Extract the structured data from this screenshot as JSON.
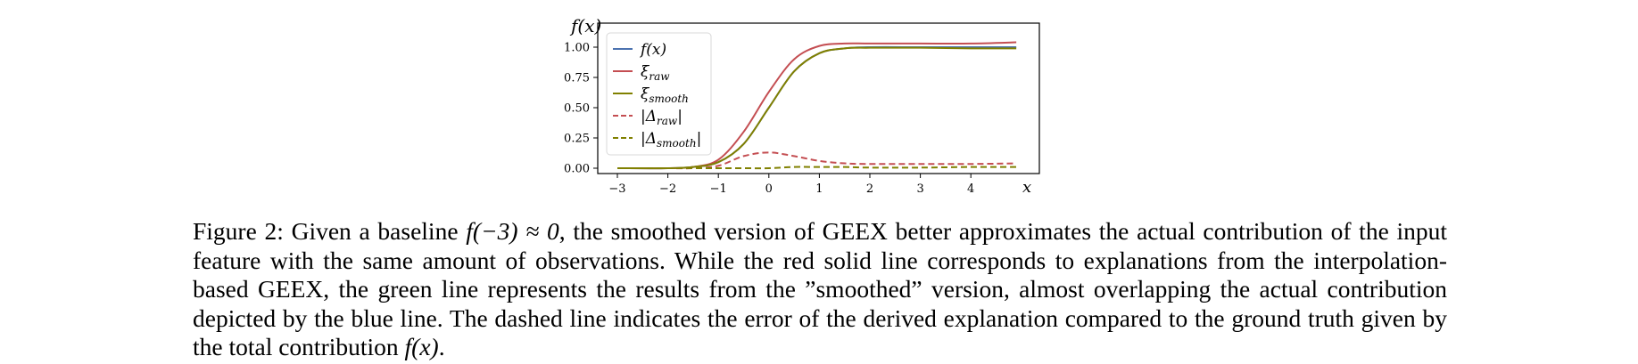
{
  "figure": {
    "y_axis_label": "f(x)",
    "x_axis_label": "x",
    "legend": [
      {
        "label": "f(x)",
        "color": "#4c72b0",
        "style": "solid"
      },
      {
        "label": "ξ_raw",
        "color": "#c44e52",
        "style": "solid"
      },
      {
        "label": "ξ_smooth",
        "color": "#808000",
        "style": "solid"
      },
      {
        "label": "|Δ_raw|",
        "color": "#c44e52",
        "style": "dashed"
      },
      {
        "label": "|Δ_smooth|",
        "color": "#808000",
        "style": "dashed"
      }
    ],
    "x_ticks": [
      "−3",
      "−2",
      "−1",
      "0",
      "1",
      "2",
      "3",
      "4"
    ],
    "y_ticks": [
      "0.00",
      "0.25",
      "0.50",
      "0.75",
      "1.00"
    ]
  },
  "chart_data": {
    "type": "line",
    "title": "",
    "xlabel": "x",
    "ylabel": "f(x)",
    "xlim": [
      -3.3,
      5.5
    ],
    "ylim": [
      -0.05,
      1.08
    ],
    "grid": false,
    "legend_position": "upper left",
    "x": [
      -3,
      -2,
      -1.5,
      -1,
      -0.5,
      0,
      0.5,
      1,
      1.5,
      2,
      3,
      4,
      4.9
    ],
    "series": [
      {
        "name": "f(x)",
        "color": "#4c72b0",
        "style": "solid",
        "values": [
          0.0,
          0.0,
          0.01,
          0.05,
          0.2,
          0.5,
          0.8,
          0.95,
          0.99,
          1.0,
          1.0,
          1.0,
          1.0
        ]
      },
      {
        "name": "ξ_raw",
        "color": "#c44e52",
        "style": "solid",
        "values": [
          0.0,
          0.0,
          0.01,
          0.07,
          0.3,
          0.63,
          0.9,
          1.01,
          1.03,
          1.03,
          1.03,
          1.03,
          1.04
        ]
      },
      {
        "name": "ξ_smooth",
        "color": "#808000",
        "style": "solid",
        "values": [
          0.0,
          0.0,
          0.01,
          0.05,
          0.2,
          0.5,
          0.8,
          0.95,
          0.99,
          0.995,
          0.995,
          0.99,
          0.99
        ]
      },
      {
        "name": "|Δ_raw|",
        "color": "#c44e52",
        "style": "dashed",
        "values": [
          0.0,
          0.0,
          0.0,
          0.02,
          0.1,
          0.13,
          0.1,
          0.06,
          0.04,
          0.035,
          0.035,
          0.035,
          0.04
        ]
      },
      {
        "name": "|Δ_smooth|",
        "color": "#808000",
        "style": "dashed",
        "values": [
          0.0,
          0.0,
          0.0,
          0.0,
          0.0,
          0.0,
          0.01,
          0.01,
          0.01,
          0.005,
          0.005,
          0.01,
          0.01
        ]
      }
    ]
  },
  "caption": {
    "prefix": "Figure 2: Given a baseline ",
    "math1": "f(−3) ≈ 0",
    "text1": ", the smoothed version of GEEX better approximates the actual contribution of the input feature with the same amount of observations. While the red solid line corresponds to explanations from the interpolation-based GEEX, the green line represents the results from the ”smoothed” version, almost overlapping the actual contribution depicted by the blue line. The dashed line indicates the error of the derived explanation compared to the ground truth given by the total contribution ",
    "math2": "f(x)",
    "suffix": "."
  }
}
